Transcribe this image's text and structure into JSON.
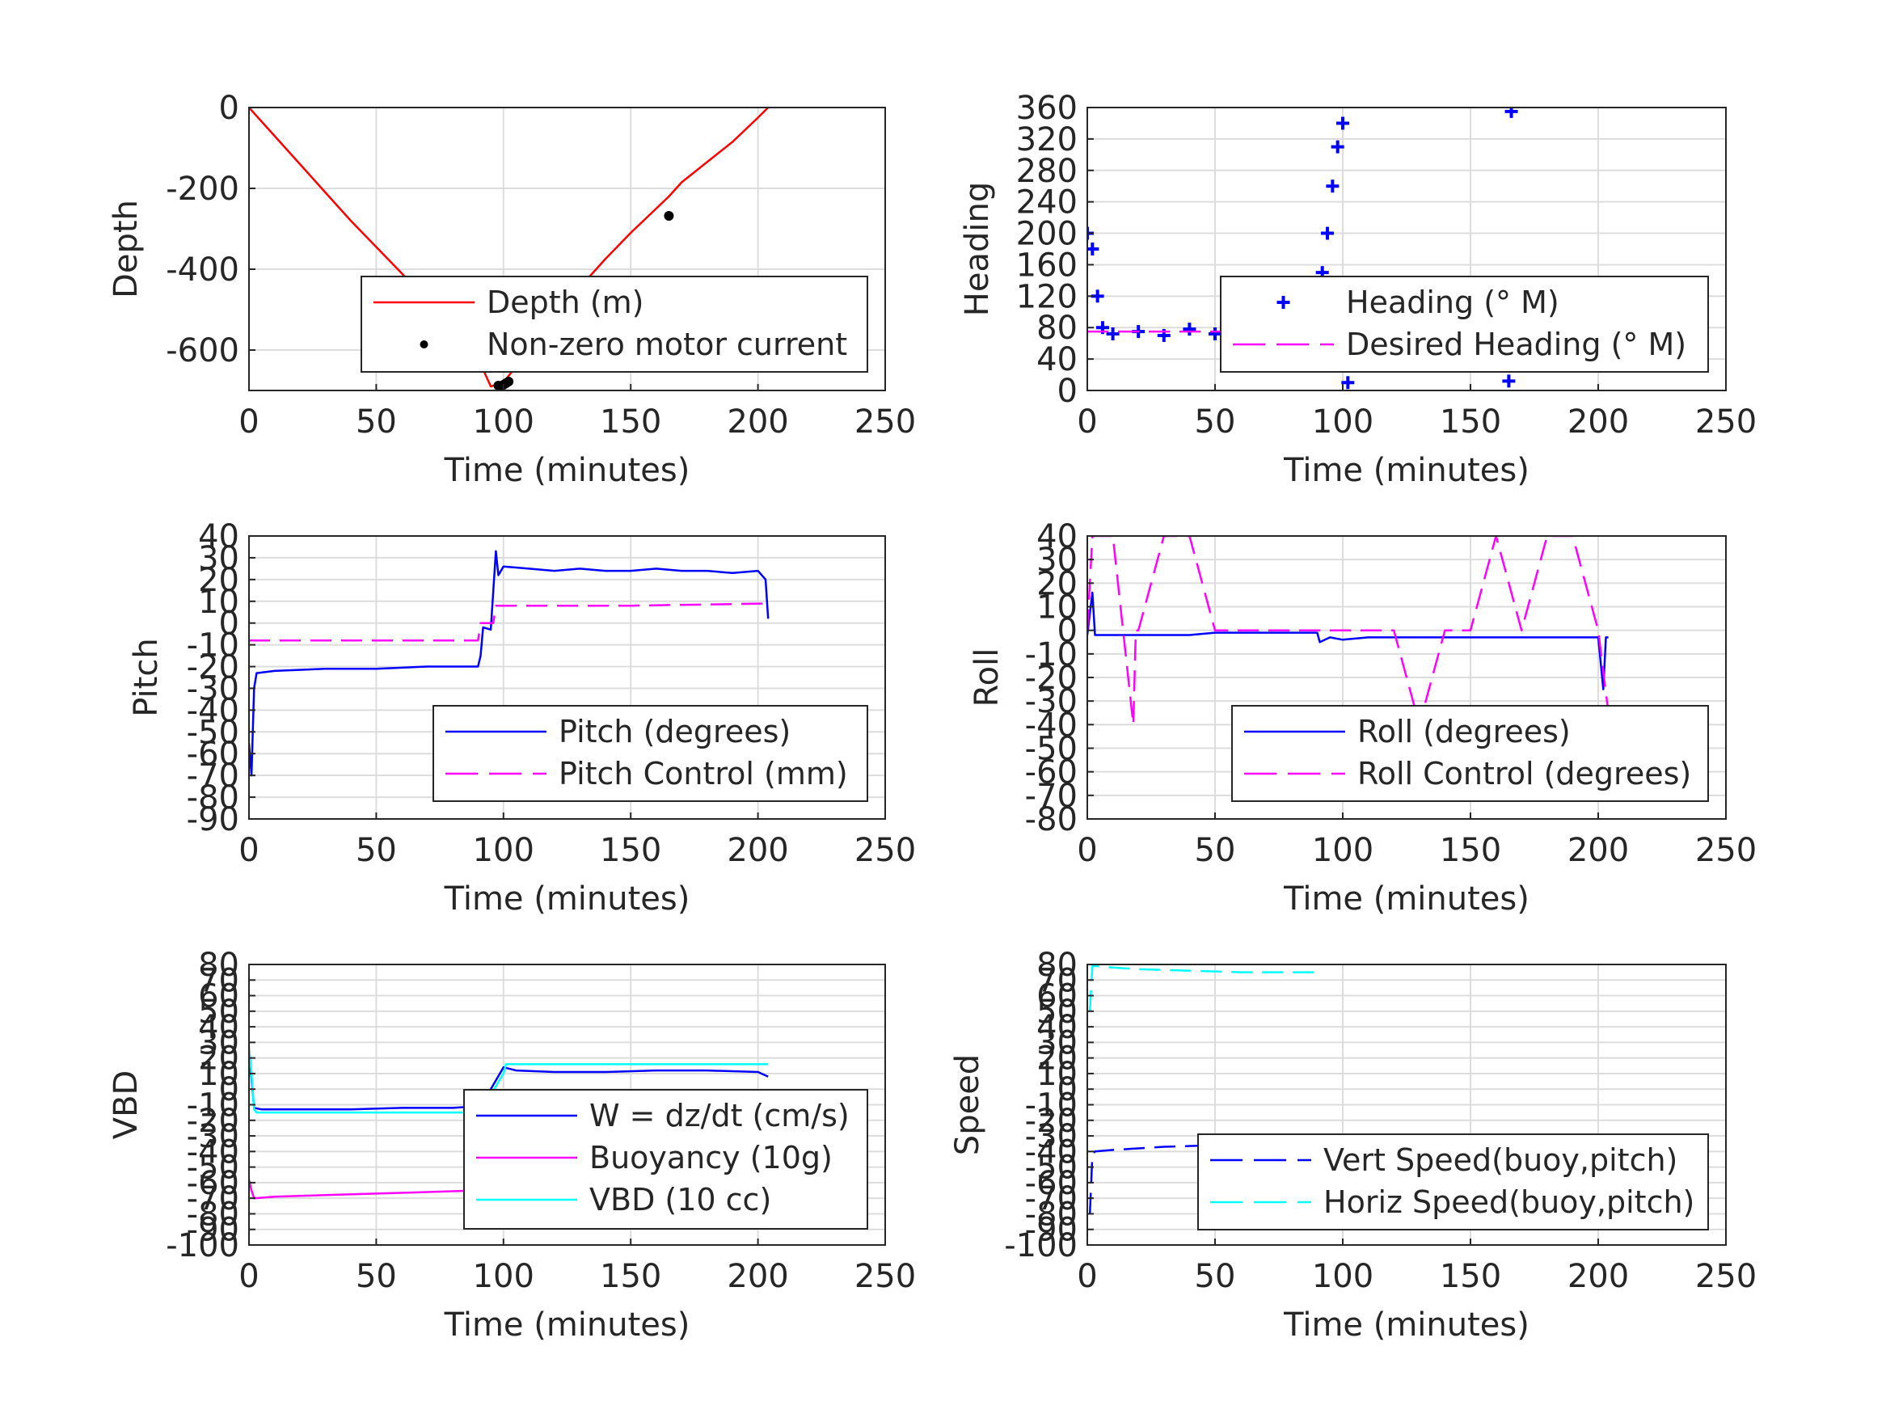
{
  "chart_data": [
    {
      "type": "line",
      "xlabel": "Time (minutes)",
      "ylabel": "Depth",
      "xlim": [
        0,
        250
      ],
      "ylim": [
        -700,
        0
      ],
      "xticks": [
        "0",
        "50",
        "100",
        "150",
        "200",
        "250"
      ],
      "yticks": [
        "0",
        "-200",
        "-400",
        "-600"
      ],
      "grid": true,
      "legend": "bottom-right",
      "series": [
        {
          "name": "Depth (m)",
          "style": "solid",
          "color": "#ff0000",
          "x": [
            0,
            10,
            20,
            30,
            40,
            50,
            60,
            70,
            80,
            90,
            95,
            100,
            110,
            120,
            130,
            140,
            150,
            160,
            165,
            170,
            180,
            190,
            200,
            204
          ],
          "y": [
            0,
            -70,
            -140,
            -210,
            -280,
            -345,
            -410,
            -480,
            -550,
            -620,
            -690,
            -680,
            -600,
            -520,
            -445,
            -375,
            -310,
            -250,
            -220,
            -185,
            -135,
            -85,
            -25,
            0
          ]
        },
        {
          "name": "Non-zero motor current",
          "style": "dots",
          "color": "#000000",
          "x": [
            98,
            99,
            100,
            101,
            102,
            165
          ],
          "y": [
            -688,
            -690,
            -686,
            -682,
            -678,
            -268
          ]
        }
      ]
    },
    {
      "type": "scatter",
      "xlabel": "Time (minutes)",
      "ylabel": "Heading",
      "xlim": [
        0,
        250
      ],
      "ylim": [
        0,
        360
      ],
      "xticks": [
        "0",
        "50",
        "100",
        "150",
        "200",
        "250"
      ],
      "yticks": [
        "360",
        "320",
        "280",
        "240",
        "200",
        "160",
        "120",
        "80",
        "40",
        "0"
      ],
      "grid": true,
      "legend": "right",
      "series": [
        {
          "name": "Heading (° M)",
          "style": "plus",
          "color": "#0000ff",
          "x": [
            0,
            2,
            4,
            6,
            10,
            20,
            30,
            40,
            50,
            60,
            70,
            80,
            85,
            90,
            92,
            94,
            96,
            98,
            100,
            102,
            104,
            110,
            120,
            130,
            140,
            150,
            160,
            165,
            166,
            170,
            180,
            190,
            200,
            203
          ],
          "y": [
            200,
            180,
            120,
            80,
            72,
            75,
            70,
            78,
            72,
            78,
            80,
            74,
            62,
            95,
            150,
            200,
            260,
            310,
            340,
            10,
            60,
            70,
            75,
            68,
            72,
            66,
            58,
            12,
            355,
            70,
            72,
            68,
            74,
            55
          ]
        },
        {
          "name": "Desired Heading (° M)",
          "style": "dashed",
          "color": "#ff00ff",
          "x": [
            0,
            50,
            100,
            150,
            204
          ],
          "y": [
            75,
            75,
            75,
            75,
            75
          ]
        }
      ]
    },
    {
      "type": "line",
      "xlabel": "Time (minutes)",
      "ylabel": "Pitch",
      "xlim": [
        0,
        250
      ],
      "ylim": [
        -90,
        40
      ],
      "xticks": [
        "0",
        "50",
        "100",
        "150",
        "200",
        "250"
      ],
      "yticks": [
        "40",
        "30",
        "20",
        "10",
        "0",
        "-10",
        "-20",
        "-30",
        "-40",
        "-50",
        "-60",
        "-70",
        "-80",
        "-90"
      ],
      "grid": true,
      "legend": "bottom-right",
      "series": [
        {
          "name": "Pitch (degrees)",
          "style": "solid",
          "color": "#0000ff",
          "x": [
            0,
            1,
            2,
            3,
            10,
            30,
            50,
            70,
            90,
            91,
            92,
            95,
            97,
            98,
            100,
            110,
            120,
            130,
            140,
            150,
            160,
            170,
            180,
            190,
            200,
            203,
            204
          ],
          "y": [
            -55,
            -70,
            -30,
            -23,
            -22,
            -21,
            -21,
            -20,
            -20,
            -15,
            -2,
            -3,
            33,
            22,
            26,
            25,
            24,
            25,
            24,
            24,
            25,
            24,
            24,
            23,
            24,
            20,
            2
          ]
        },
        {
          "name": "Pitch Control (mm)",
          "style": "dashed",
          "color": "#ff00ff",
          "x": [
            0,
            90,
            91,
            96,
            97,
            150,
            204
          ],
          "y": [
            -8,
            -8,
            0,
            0,
            8,
            8,
            9
          ]
        }
      ]
    },
    {
      "type": "line",
      "xlabel": "Time (minutes)",
      "ylabel": "Roll",
      "xlim": [
        0,
        250
      ],
      "ylim": [
        -80,
        40
      ],
      "xticks": [
        "0",
        "50",
        "100",
        "150",
        "200",
        "250"
      ],
      "yticks": [
        "40",
        "30",
        "20",
        "10",
        "0",
        "-10",
        "-20",
        "-30",
        "-40",
        "-50",
        "-60",
        "-70",
        "-80"
      ],
      "grid": true,
      "legend": "bottom-right",
      "series": [
        {
          "name": "Roll (degrees)",
          "style": "solid",
          "color": "#0000ff",
          "x": [
            0,
            2,
            3,
            4,
            10,
            20,
            30,
            40,
            50,
            60,
            70,
            80,
            90,
            91,
            95,
            100,
            110,
            120,
            130,
            140,
            150,
            160,
            170,
            180,
            190,
            200,
            202,
            203,
            204
          ],
          "y": [
            -2,
            16,
            -2,
            -2,
            -2,
            -2,
            -2,
            -2,
            -1,
            -1,
            -1,
            -1,
            -1,
            -5,
            -3,
            -4,
            -3,
            -3,
            -3,
            -3,
            -3,
            -3,
            -3,
            -3,
            -3,
            -3,
            -25,
            -3,
            -3
          ]
        },
        {
          "name": "Roll Control (degrees)",
          "style": "dashed",
          "color": "#ff00ff",
          "x": [
            0,
            2,
            10,
            18,
            19,
            20,
            30,
            40,
            50,
            60,
            70,
            80,
            90,
            100,
            110,
            120,
            130,
            140,
            150,
            160,
            170,
            180,
            190,
            200,
            204
          ],
          "y": [
            0,
            40,
            40,
            -40,
            0,
            0,
            40,
            40,
            0,
            0,
            0,
            0,
            0,
            0,
            0,
            0,
            -40,
            0,
            0,
            40,
            0,
            40,
            40,
            0,
            -35
          ]
        }
      ]
    },
    {
      "type": "line",
      "xlabel": "Time (minutes)",
      "ylabel": "VBD",
      "xlim": [
        0,
        250
      ],
      "ylim": [
        -100,
        80
      ],
      "xticks": [
        "0",
        "50",
        "100",
        "150",
        "200",
        "250"
      ],
      "yticks": [
        "80",
        "70",
        "60",
        "50",
        "40",
        "30",
        "20",
        "10",
        "0",
        "-10",
        "-20",
        "-30",
        "-40",
        "-50",
        "-60",
        "-70",
        "-80",
        "-90",
        "-100"
      ],
      "grid": true,
      "legend": "bottom-right",
      "series": [
        {
          "name": "W = dz/dt (cm/s)",
          "style": "solid",
          "color": "#0000ff",
          "x": [
            0,
            2,
            5,
            20,
            40,
            60,
            80,
            90,
            92,
            95,
            100,
            105,
            120,
            140,
            160,
            180,
            200,
            204
          ],
          "y": [
            25,
            -12,
            -13,
            -13,
            -13,
            -12,
            -12,
            -11,
            -12,
            0,
            14,
            12,
            11,
            11,
            12,
            12,
            11,
            8
          ]
        },
        {
          "name": "Buoyancy (10g)",
          "style": "solid",
          "color": "#ff00ff",
          "x": [
            0,
            1,
            2,
            10,
            30,
            50,
            70,
            90
          ],
          "y": [
            -58,
            -65,
            -70,
            -69,
            -68,
            -67,
            -66,
            -65
          ]
        },
        {
          "name": "VBD (10 cc)",
          "style": "solid",
          "color": "#00ffff",
          "x": [
            0,
            1,
            2,
            3,
            50,
            90,
            92,
            100,
            101,
            150,
            204
          ],
          "y": [
            28,
            10,
            -13,
            -15,
            -15,
            -15,
            -12,
            10,
            16,
            16,
            16
          ]
        }
      ]
    },
    {
      "type": "line",
      "xlabel": "Time (minutes)",
      "ylabel": "Speed",
      "xlim": [
        0,
        250
      ],
      "ylim": [
        -100,
        80
      ],
      "xticks": [
        "0",
        "50",
        "100",
        "150",
        "200",
        "250"
      ],
      "yticks": [
        "80",
        "70",
        "60",
        "50",
        "40",
        "30",
        "20",
        "10",
        "0",
        "-10",
        "-20",
        "-30",
        "-40",
        "-50",
        "-60",
        "-70",
        "-80",
        "-90",
        "-100"
      ],
      "grid": true,
      "legend": "bottom-right",
      "series": [
        {
          "name": "Vert Speed(buoy,pitch)",
          "style": "dashed",
          "color": "#0000ff",
          "x": [
            1,
            2,
            3,
            10,
            20,
            30,
            50,
            70,
            90
          ],
          "y": [
            -80,
            -42,
            -40,
            -39,
            -38,
            -37,
            -36,
            -35,
            -34
          ]
        },
        {
          "name": "Horiz Speed(buoy,pitch)",
          "style": "dashed",
          "color": "#00ffff",
          "x": [
            1,
            2,
            3,
            10,
            20,
            40,
            60,
            90
          ],
          "y": [
            50,
            79,
            79,
            78,
            77,
            76,
            75,
            75
          ]
        }
      ]
    }
  ]
}
